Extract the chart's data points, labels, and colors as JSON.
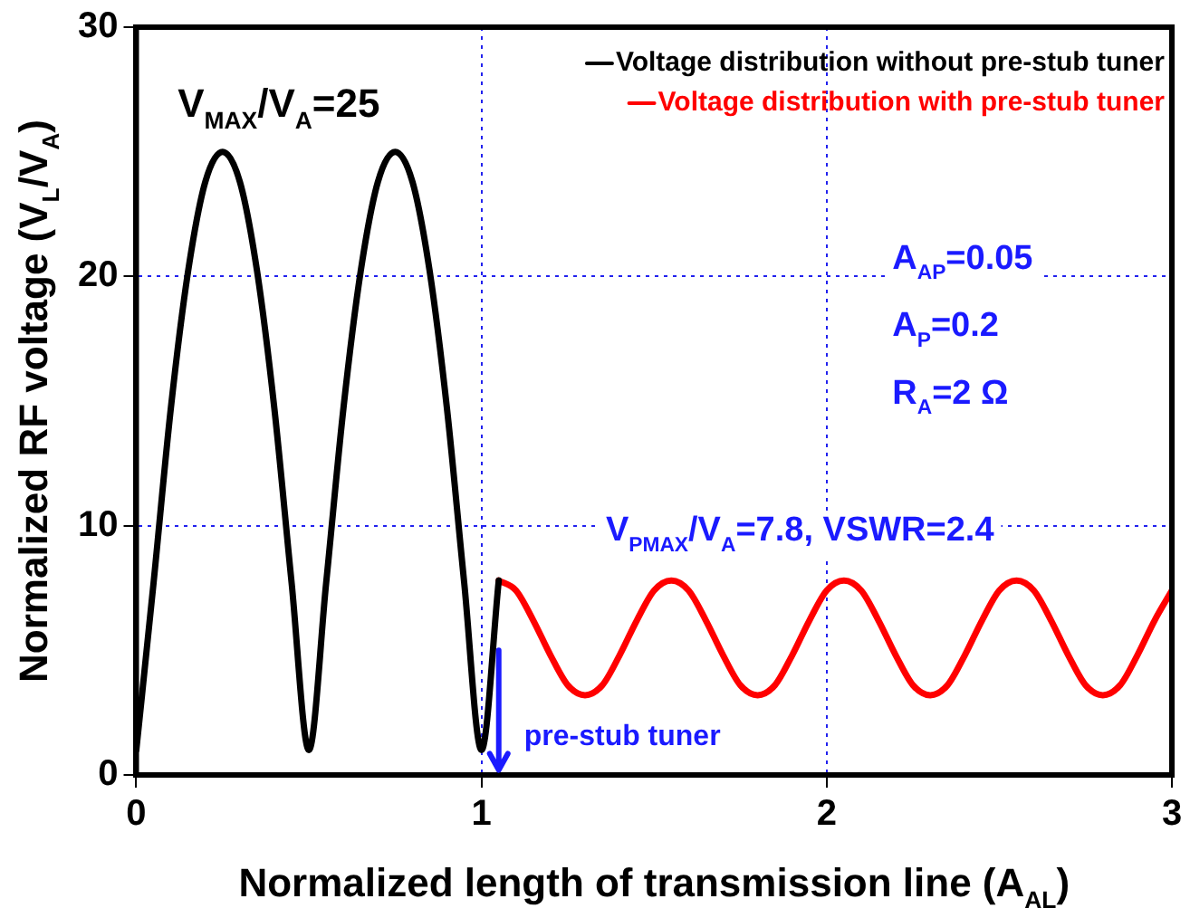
{
  "chart_data": {
    "type": "line",
    "xlabel": "Normalized length of transmission line (A$_{AL}$)",
    "ylabel": "Normalized RF voltage (V$_{L}$/V$_{A}$)",
    "xlim": [
      0,
      3
    ],
    "ylim": [
      0,
      30
    ],
    "xticks": [
      0,
      1,
      2,
      3
    ],
    "yticks": [
      0,
      10,
      20,
      30
    ],
    "grid": true,
    "legend": "top right",
    "marker": "none",
    "line_style": "solid",
    "series": [
      {
        "name": "Voltage distribution without pre-stub tuner",
        "color": "#000000",
        "x": [
          0,
          0.05,
          0.1,
          0.15,
          0.2,
          0.25,
          0.3,
          0.35,
          0.4,
          0.45,
          0.5,
          0.55,
          0.6,
          0.65,
          0.7,
          0.75,
          0.8,
          0.85,
          0.9,
          0.95,
          1.0,
          1.05
        ],
        "values": [
          1,
          7.7,
          14.7,
          20.2,
          23.8,
          25,
          23.8,
          20.2,
          14.7,
          7.7,
          1,
          7.7,
          14.7,
          20.2,
          23.8,
          25,
          23.8,
          20.2,
          14.7,
          7.7,
          1,
          7.8
        ]
      },
      {
        "name": "Voltage distribution with pre-stub tuner",
        "color": "#ff0000",
        "x": [
          1.05,
          1.1,
          1.15,
          1.2,
          1.25,
          1.3,
          1.35,
          1.4,
          1.45,
          1.5,
          1.55,
          1.6,
          1.65,
          1.7,
          1.75,
          1.8,
          1.85,
          1.9,
          1.95,
          2.0,
          2.05,
          2.1,
          2.15,
          2.2,
          2.25,
          2.3,
          2.35,
          2.4,
          2.45,
          2.5,
          2.55,
          2.6,
          2.65,
          2.7,
          2.75,
          2.8,
          2.85,
          2.9,
          2.95,
          3.0
        ],
        "values": [
          7.8,
          7.4,
          6.2,
          4.8,
          3.6,
          3.2,
          3.6,
          4.8,
          6.2,
          7.4,
          7.8,
          7.4,
          6.2,
          4.8,
          3.6,
          3.2,
          3.6,
          4.8,
          6.2,
          7.4,
          7.8,
          7.4,
          6.2,
          4.8,
          3.6,
          3.2,
          3.6,
          4.8,
          6.2,
          7.4,
          7.8,
          7.4,
          6.2,
          4.8,
          3.6,
          3.2,
          3.6,
          4.8,
          6.2,
          7.4
        ]
      }
    ],
    "annotations": [
      "V$_{MAX}$/V$_{A}$=25",
      "A$_{AP}$=0.05",
      "A$_{P}$=0.2",
      "R$_{A}$=2 Ω",
      "V$_{PMAX}$/V$_{A}$=7.8, VSWR=2.4"
    ],
    "ref_lines": [
      {
        "axis": "x",
        "value": 1.05,
        "label": "pre-stub tuner",
        "color": "#1a1aff"
      }
    ]
  }
}
